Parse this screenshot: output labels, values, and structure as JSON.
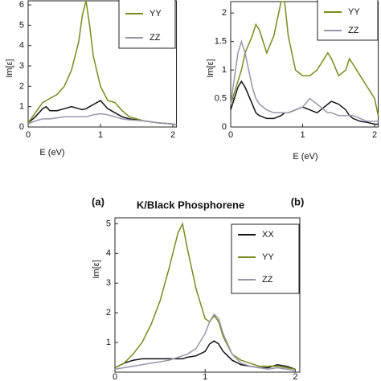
{
  "chart_data": [
    {
      "type": "line",
      "panel_label": "(a)",
      "x_label": "E (eV)",
      "y_label": "Im[ε]",
      "xlim": [
        0,
        2.05
      ],
      "ylim": [
        0,
        6.2
      ],
      "xticks": [
        0,
        1,
        2
      ],
      "yticks": [
        0,
        1,
        2,
        3,
        4,
        5,
        6
      ],
      "x": [
        0,
        0.1,
        0.2,
        0.25,
        0.3,
        0.4,
        0.5,
        0.6,
        0.7,
        0.75,
        0.8,
        0.85,
        0.9,
        1.0,
        1.1,
        1.2,
        1.3,
        1.4,
        1.6,
        1.8,
        2.0,
        2.05
      ],
      "series": [
        {
          "color": "#111111",
          "values": [
            0.2,
            0.5,
            0.9,
            1.0,
            0.8,
            0.8,
            0.9,
            1.0,
            0.9,
            0.85,
            0.9,
            1.0,
            1.1,
            1.3,
            0.9,
            0.7,
            0.5,
            0.4,
            0.3,
            0.2,
            0.15,
            0.1
          ]
        },
        {
          "name": "YY",
          "color": "#7a8a1e",
          "values": [
            0.2,
            0.7,
            1.2,
            1.3,
            1.4,
            1.6,
            2.0,
            2.8,
            4.2,
            5.5,
            6.2,
            5.0,
            3.5,
            2.0,
            1.3,
            1.2,
            0.8,
            0.5,
            0.3,
            0.2,
            0.15,
            0.1
          ]
        },
        {
          "name": "ZZ",
          "color": "#9a94a8",
          "values": [
            0.15,
            0.3,
            0.4,
            0.4,
            0.4,
            0.45,
            0.5,
            0.5,
            0.5,
            0.5,
            0.5,
            0.55,
            0.6,
            0.65,
            0.6,
            0.5,
            0.4,
            0.35,
            0.3,
            0.2,
            0.15,
            0.1
          ]
        }
      ]
    },
    {
      "type": "line",
      "panel_label": "(b)",
      "x_label": "E (eV)",
      "y_label": "Im[ε]",
      "xlim": [
        0,
        2.05
      ],
      "ylim": [
        0,
        2.2
      ],
      "xticks": [
        0,
        1,
        2
      ],
      "yticks": [
        0,
        0.5,
        1,
        1.5,
        2
      ],
      "x": [
        0,
        0.1,
        0.15,
        0.2,
        0.3,
        0.35,
        0.4,
        0.5,
        0.6,
        0.7,
        0.75,
        0.8,
        0.9,
        1.0,
        1.1,
        1.2,
        1.3,
        1.35,
        1.4,
        1.5,
        1.6,
        1.65,
        1.7,
        1.8,
        1.9,
        2.0,
        2.05
      ],
      "series": [
        {
          "color": "#111111",
          "values": [
            0.3,
            0.7,
            0.8,
            0.7,
            0.4,
            0.25,
            0.2,
            0.15,
            0.15,
            0.2,
            0.25,
            0.25,
            0.3,
            0.35,
            0.3,
            0.25,
            0.35,
            0.4,
            0.45,
            0.4,
            0.3,
            0.2,
            0.15,
            0.1,
            0.08,
            0.05,
            0.05
          ]
        },
        {
          "name": "YY",
          "color": "#7a8a1e",
          "values": [
            0.4,
            0.8,
            1.0,
            1.3,
            1.6,
            1.8,
            1.7,
            1.3,
            1.6,
            2.2,
            2.2,
            1.6,
            1.0,
            0.9,
            0.9,
            1.0,
            1.2,
            1.3,
            1.2,
            0.9,
            1.0,
            1.2,
            1.1,
            0.9,
            0.7,
            0.5,
            0.2
          ]
        },
        {
          "name": "ZZ",
          "color": "#9a94a8",
          "values": [
            0.4,
            1.3,
            1.5,
            1.3,
            0.7,
            0.5,
            0.4,
            0.3,
            0.25,
            0.25,
            0.25,
            0.25,
            0.3,
            0.35,
            0.5,
            0.4,
            0.3,
            0.25,
            0.25,
            0.2,
            0.2,
            0.2,
            0.2,
            0.15,
            0.1,
            0.1,
            0.1
          ]
        }
      ]
    },
    {
      "type": "line",
      "title": "K/Black Phosphorene",
      "y_label": "Im[ε]",
      "xlim": [
        0,
        2.05
      ],
      "ylim": [
        0,
        5.2
      ],
      "xticks": [
        0,
        1,
        2
      ],
      "yticks": [
        1,
        2,
        3,
        4,
        5
      ],
      "x": [
        0,
        0.1,
        0.2,
        0.3,
        0.4,
        0.5,
        0.6,
        0.7,
        0.75,
        0.8,
        0.9,
        1.0,
        1.05,
        1.1,
        1.15,
        1.2,
        1.3,
        1.4,
        1.5,
        1.6,
        1.7,
        1.8,
        1.9,
        2.0
      ],
      "series": [
        {
          "name": "XX",
          "color": "#111111",
          "values": [
            0.15,
            0.3,
            0.4,
            0.45,
            0.45,
            0.45,
            0.45,
            0.45,
            0.45,
            0.5,
            0.55,
            0.7,
            0.95,
            1.05,
            0.95,
            0.7,
            0.4,
            0.25,
            0.2,
            0.15,
            0.15,
            0.25,
            0.2,
            0.1
          ]
        },
        {
          "name": "YY",
          "color": "#7a8a1e",
          "values": [
            0.15,
            0.3,
            0.6,
            1.0,
            1.6,
            2.4,
            3.5,
            4.7,
            5.0,
            4.2,
            2.8,
            1.8,
            1.7,
            1.9,
            1.7,
            1.2,
            0.6,
            0.4,
            0.3,
            0.2,
            0.2,
            0.2,
            0.15,
            0.1
          ]
        },
        {
          "name": "ZZ",
          "color": "#9a94a8",
          "values": [
            0.1,
            0.15,
            0.2,
            0.25,
            0.3,
            0.35,
            0.4,
            0.5,
            0.55,
            0.6,
            0.8,
            1.3,
            1.7,
            1.95,
            1.8,
            1.3,
            0.6,
            0.3,
            0.2,
            0.15,
            0.1,
            0.15,
            0.1,
            0.05
          ]
        }
      ]
    }
  ]
}
